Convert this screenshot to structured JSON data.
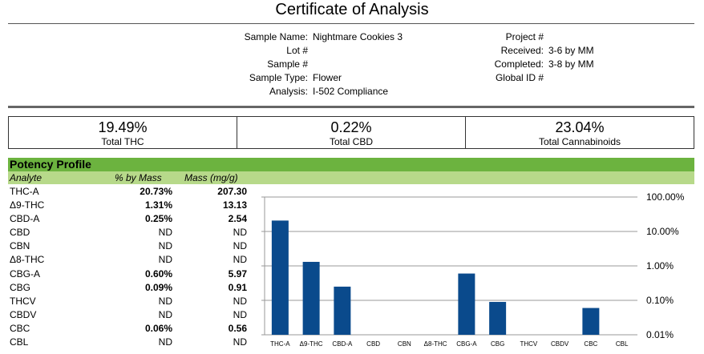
{
  "header": {
    "title": "Certificate of Analysis"
  },
  "sample_info_left": [
    {
      "label": "Sample Name:",
      "value": "Nightmare Cookies 3"
    },
    {
      "label": "Lot #",
      "value": ""
    },
    {
      "label": "Sample #",
      "value": ""
    },
    {
      "label": "Sample Type:",
      "value": "Flower"
    },
    {
      "label": "Analysis:",
      "value": "I-502 Compliance"
    }
  ],
  "sample_info_right": [
    {
      "label": "Project #",
      "value": ""
    },
    {
      "label": "Received:",
      "value": "3-6 by MM"
    },
    {
      "label": "Completed:",
      "value": "3-8 by MM"
    },
    {
      "label": "Global ID #",
      "value": ""
    }
  ],
  "totals": [
    {
      "value": "19.49%",
      "label": "Total THC"
    },
    {
      "value": "0.22%",
      "label": "Total CBD"
    },
    {
      "value": "23.04%",
      "label": "Total Cannabinoids"
    }
  ],
  "potency": {
    "title": "Potency Profile",
    "headers": {
      "analyte": "Analyte",
      "pct": "% by Mass",
      "mg": "Mass (mg/g)"
    },
    "rows": [
      {
        "analyte": "THC-A",
        "pct": "20.73%",
        "mg": "207.30",
        "bold": true
      },
      {
        "analyte": "Δ9-THC",
        "pct": "1.31%",
        "mg": "13.13",
        "bold": true
      },
      {
        "analyte": "CBD-A",
        "pct": "0.25%",
        "mg": "2.54",
        "bold": true
      },
      {
        "analyte": "CBD",
        "pct": "ND",
        "mg": "ND",
        "bold": false
      },
      {
        "analyte": "CBN",
        "pct": "ND",
        "mg": "ND",
        "bold": false
      },
      {
        "analyte": "Δ8-THC",
        "pct": "ND",
        "mg": "ND",
        "bold": false
      },
      {
        "analyte": "CBG-A",
        "pct": "0.60%",
        "mg": "5.97",
        "bold": true
      },
      {
        "analyte": "CBG",
        "pct": "0.09%",
        "mg": "0.91",
        "bold": true
      },
      {
        "analyte": "THCV",
        "pct": "ND",
        "mg": "ND",
        "bold": false
      },
      {
        "analyte": "CBDV",
        "pct": "ND",
        "mg": "ND",
        "bold": false
      },
      {
        "analyte": "CBC",
        "pct": "0.06%",
        "mg": "0.56",
        "bold": true
      },
      {
        "analyte": "CBL",
        "pct": "ND",
        "mg": "ND",
        "bold": false
      }
    ]
  },
  "chart_data": {
    "type": "bar",
    "scale": "log",
    "categories": [
      "THC-A",
      "Δ9-THC",
      "CBD-A",
      "CBD",
      "CBN",
      "Δ8-THC",
      "CBG-A",
      "CBG",
      "THCV",
      "CBDV",
      "CBC",
      "CBL"
    ],
    "values": [
      20.73,
      1.31,
      0.25,
      null,
      null,
      null,
      0.6,
      0.09,
      null,
      null,
      0.06,
      null
    ],
    "ylim": [
      0.01,
      100
    ],
    "y_ticks": [
      "100.00%",
      "10.00%",
      "1.00%",
      "0.10%",
      "0.01%"
    ],
    "y_axis_side": "right",
    "grid": true,
    "bar_color": "#0a4a8c"
  }
}
